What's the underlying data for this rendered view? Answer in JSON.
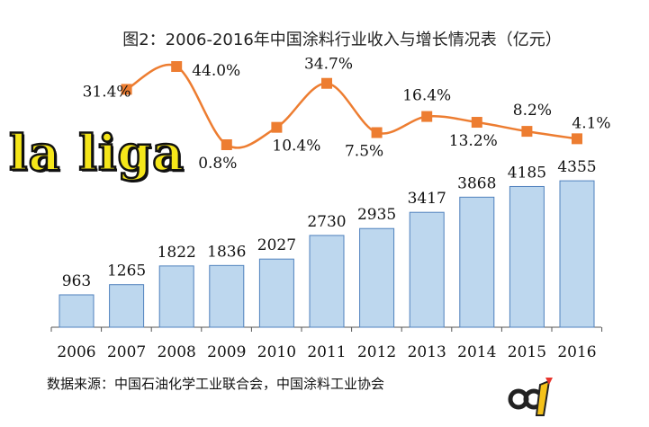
{
  "title": "图2：2006-2016年中国涂料行业收入与增长情况表（亿元）",
  "source": "数据来源：中国石油化学工业联合会，中国涂料工业协会",
  "watermark_text": "la liga",
  "colors": {
    "bar_fill": "#bdd7ee",
    "bar_stroke": "#4f81bd",
    "line": "#ed7d31",
    "text": "#111111"
  },
  "chart_data": {
    "type": "bar",
    "categories": [
      "2006",
      "2007",
      "2008",
      "2009",
      "2010",
      "2011",
      "2012",
      "2013",
      "2014",
      "2015",
      "2016"
    ],
    "series": [
      {
        "type": "bar",
        "values": [
          963,
          1265,
          1822,
          1836,
          2027,
          2730,
          2935,
          3417,
          3868,
          4185,
          4355
        ]
      },
      {
        "type": "line",
        "values": [
          null,
          31.4,
          44.0,
          0.8,
          10.4,
          34.7,
          7.5,
          16.4,
          13.2,
          8.2,
          4.1
        ],
        "labels": [
          "",
          "31.4%",
          "44.0%",
          "0.8%",
          "10.4%",
          "34.7%",
          "7.5%",
          "16.4%",
          "13.2%",
          "8.2%",
          "4.1%"
        ]
      }
    ],
    "bar_value_labels": [
      "963",
      "1265",
      "1822",
      "1836",
      "2027",
      "2730",
      "2935",
      "3417",
      "3868",
      "4185",
      "4355"
    ]
  }
}
